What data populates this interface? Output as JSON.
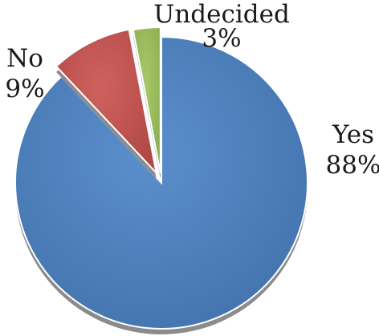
{
  "chart_data": {
    "type": "pie",
    "style": "3d-exploded",
    "legend": "none",
    "slices": [
      {
        "label": "Yes",
        "value": 88,
        "value_label": "88%",
        "color": "#4a7ebb"
      },
      {
        "label": "No",
        "value": 9,
        "value_label": "9%",
        "color": "#c0504d"
      },
      {
        "label": "Undecided",
        "value": 3,
        "value_label": "3%",
        "color": "#9bbb59"
      }
    ]
  }
}
